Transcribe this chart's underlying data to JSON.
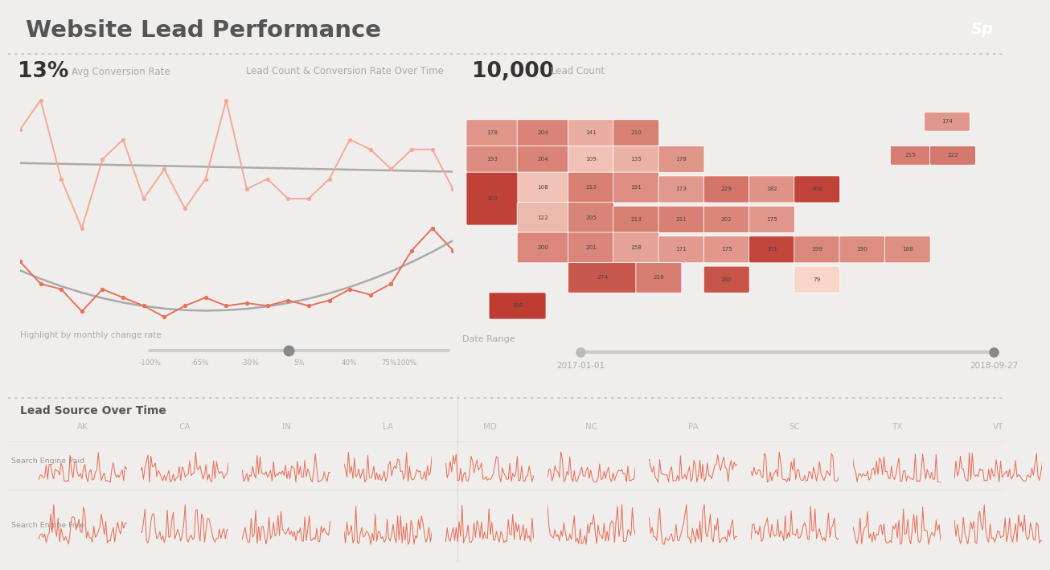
{
  "title": "Website Lead Performance",
  "bg_color": "#f0eeec",
  "dotted_line_color": "#c8c0b8",
  "title_color": "#555555",
  "kpi_value_color": "#333333",
  "kpi_label_color": "#aaaaaa",
  "avg_conversion": "13%",
  "avg_conversion_label": "Avg Conversion Rate",
  "lead_count": "10,000",
  "lead_count_label": "Lead Count",
  "chart_title_left": "Lead Count & Conversion Rate Over Time",
  "highlight_label": "Highlight by monthly change rate",
  "highlight_ticks": [
    "-100%",
    "-65%",
    "-30%",
    "5%",
    "40%",
    "75%100%"
  ],
  "date_range_label": "Date Range",
  "date_start": "2017-01-01",
  "date_end": "2018-09-27",
  "logo_bg": "#7bb5a8",
  "light_salmon": "#f4a899",
  "salmon": "#e8705a",
  "gray_line": "#aaaaaa",
  "bottom_bg": "#ffffff",
  "bottom_section_title": "Lead Source Over Time",
  "bottom_states": [
    "AK",
    "CA",
    "IN",
    "LA",
    "MD",
    "NC",
    "PA",
    "SC",
    "TX",
    "VT"
  ],
  "bottom_row1_label": "Search Engine Paid",
  "bottom_row2_label": "Search Engine Free",
  "bottom_line_color": "#e8705a",
  "state_blocks": [
    [
      1,
      48,
      9,
      7,
      178,
      "178"
    ],
    [
      10,
      48,
      9,
      7,
      204,
      "204"
    ],
    [
      19,
      48,
      8,
      7,
      141,
      "141"
    ],
    [
      27,
      48,
      8,
      7,
      210,
      "210"
    ],
    [
      82,
      52,
      8,
      5,
      174,
      "174"
    ],
    [
      1,
      41,
      9,
      7,
      193,
      "193"
    ],
    [
      10,
      41,
      9,
      7,
      204,
      "204"
    ],
    [
      19,
      41,
      8,
      7,
      109,
      "109"
    ],
    [
      27,
      41,
      8,
      7,
      135,
      "135"
    ],
    [
      35,
      41,
      8,
      7,
      178,
      "178"
    ],
    [
      76,
      43,
      7,
      5,
      215,
      "215"
    ],
    [
      83,
      43,
      8,
      5,
      222,
      "222"
    ],
    [
      10,
      33,
      9,
      8,
      108,
      "108"
    ],
    [
      19,
      33,
      8,
      8,
      213,
      "213"
    ],
    [
      27,
      33,
      8,
      8,
      191,
      "191"
    ],
    [
      35,
      33,
      8,
      7,
      173,
      "173"
    ],
    [
      43,
      33,
      8,
      7,
      229,
      "229"
    ],
    [
      51,
      33,
      8,
      7,
      182,
      "182"
    ],
    [
      59,
      33,
      8,
      7,
      308,
      "308"
    ],
    [
      1,
      27,
      9,
      14,
      309,
      "309"
    ],
    [
      10,
      25,
      9,
      8,
      122,
      "122"
    ],
    [
      19,
      25,
      8,
      8,
      205,
      "205"
    ],
    [
      27,
      25,
      8,
      7,
      213,
      "213"
    ],
    [
      35,
      25,
      8,
      7,
      211,
      "211"
    ],
    [
      43,
      25,
      8,
      7,
      202,
      "202"
    ],
    [
      51,
      25,
      8,
      7,
      175,
      "175"
    ],
    [
      10,
      17,
      9,
      8,
      200,
      "200"
    ],
    [
      19,
      17,
      8,
      8,
      201,
      "201"
    ],
    [
      27,
      17,
      8,
      8,
      158,
      "158"
    ],
    [
      35,
      17,
      8,
      7,
      171,
      "171"
    ],
    [
      43,
      17,
      8,
      7,
      175,
      "175"
    ],
    [
      51,
      17,
      8,
      7,
      301,
      "301"
    ],
    [
      59,
      17,
      8,
      7,
      199,
      "199"
    ],
    [
      67,
      17,
      8,
      7,
      190,
      "190"
    ],
    [
      75,
      17,
      8,
      7,
      188,
      "188"
    ],
    [
      19,
      9,
      12,
      8,
      274,
      "274"
    ],
    [
      31,
      9,
      8,
      8,
      216,
      "216"
    ],
    [
      43,
      9,
      8,
      7,
      280,
      "280"
    ],
    [
      59,
      9,
      8,
      7,
      79,
      "79"
    ],
    [
      5,
      2,
      10,
      7,
      318,
      "318"
    ]
  ]
}
